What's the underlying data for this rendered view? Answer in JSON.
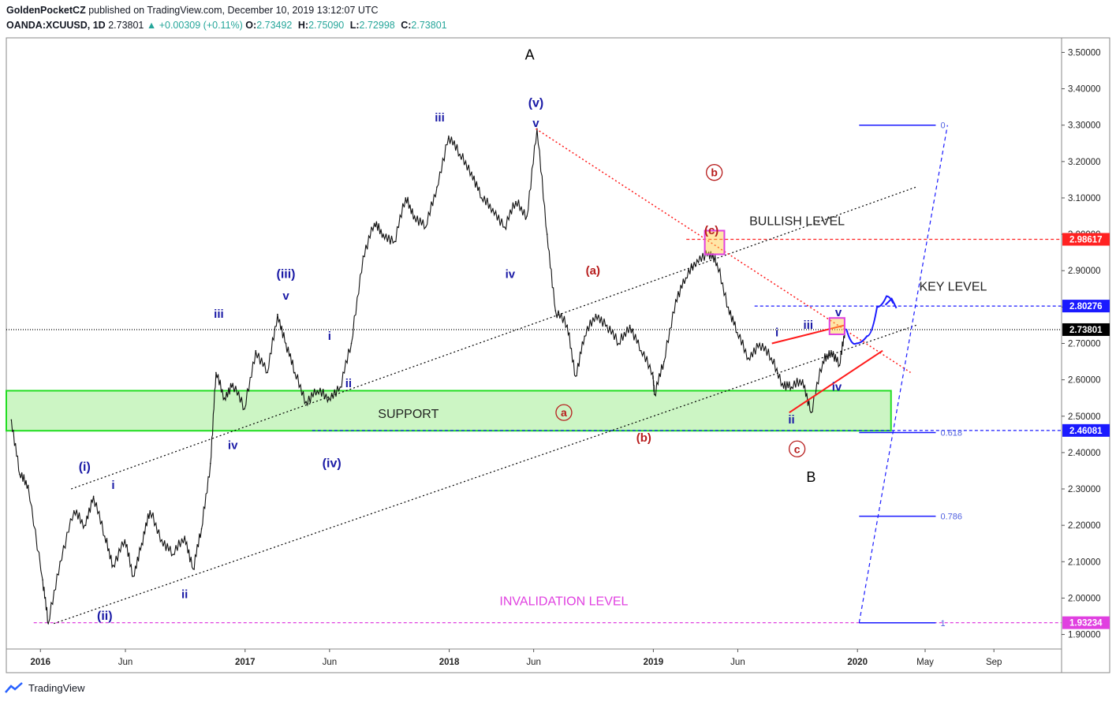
{
  "header": {
    "author": "GoldenPocketCZ",
    "published": "published on TradingView.com, December 10, 2019 13:12:07 UTC",
    "symbol": "OANDA:XCUUSD, 1D",
    "last": "2.73801",
    "change": "▲ +0.00309 (+0.11%)",
    "o_label": "O:",
    "o": "2.73492",
    "h_label": "H:",
    "h": "2.75090",
    "l_label": "L:",
    "l": "2.72998",
    "c_label": "C:",
    "c": "2.73801"
  },
  "footer": {
    "brand": "TradingView"
  },
  "colors": {
    "wave_major": "#1a1aa6",
    "wave_minor": "#b71c1c",
    "support_fill": "#ccf5c4",
    "support_edge": "#22dd22",
    "red_line": "#ff1a1a",
    "blue_line": "#1a1aff",
    "magenta": "#e040e0"
  },
  "chart_data": {
    "type": "line",
    "series": [
      {
        "x": [
          "2015-11-10",
          "2015-11-25",
          "2015-12-10",
          "2016-01-05",
          "2016-01-15",
          "2016-02-05",
          "2016-03-01",
          "2016-03-20",
          "2016-04-05",
          "2016-04-25",
          "2016-05-10",
          "2016-05-31",
          "2016-06-15",
          "2016-06-30",
          "2016-07-15",
          "2016-08-05",
          "2016-08-25",
          "2016-09-15",
          "2016-09-30",
          "2016-10-15",
          "2016-10-31",
          "2016-11-10",
          "2016-11-25",
          "2016-12-10",
          "2016-12-31",
          "2017-01-20",
          "2017-02-10",
          "2017-02-28",
          "2017-03-15",
          "2017-03-31",
          "2017-04-20",
          "2017-05-10",
          "2017-05-31",
          "2017-06-20",
          "2017-07-10",
          "2017-07-31",
          "2017-08-20",
          "2017-09-05",
          "2017-09-25",
          "2017-10-15",
          "2017-10-31",
          "2017-11-20",
          "2017-12-10",
          "2017-12-31",
          "2018-01-20",
          "2018-02-10",
          "2018-02-28",
          "2018-03-20",
          "2018-04-10",
          "2018-04-30",
          "2018-05-20",
          "2018-06-07",
          "2018-06-25",
          "2018-07-10",
          "2018-07-31",
          "2018-08-15",
          "2018-08-31",
          "2018-09-20",
          "2018-10-10",
          "2018-10-31",
          "2018-11-20",
          "2018-12-10",
          "2018-12-31",
          "2019-01-03",
          "2019-01-20",
          "2019-02-10",
          "2019-02-28",
          "2019-03-20",
          "2019-04-10",
          "2019-04-25",
          "2019-05-15",
          "2019-05-31",
          "2019-06-20",
          "2019-07-10",
          "2019-07-31",
          "2019-08-20",
          "2019-09-05",
          "2019-09-25",
          "2019-10-10",
          "2019-10-31",
          "2019-11-15",
          "2019-11-30",
          "2019-12-10"
        ],
        "y": [
          2.49,
          2.34,
          2.31,
          2.05,
          1.93,
          2.1,
          2.24,
          2.2,
          2.28,
          2.17,
          2.09,
          2.16,
          2.06,
          2.15,
          2.24,
          2.16,
          2.12,
          2.17,
          2.08,
          2.19,
          2.37,
          2.62,
          2.55,
          2.59,
          2.52,
          2.68,
          2.62,
          2.78,
          2.7,
          2.62,
          2.54,
          2.57,
          2.55,
          2.58,
          2.7,
          2.94,
          3.03,
          3.0,
          2.98,
          3.1,
          3.05,
          3.02,
          3.13,
          3.27,
          3.22,
          3.17,
          3.1,
          3.07,
          3.02,
          3.09,
          3.05,
          3.29,
          3.0,
          2.79,
          2.75,
          2.61,
          2.72,
          2.78,
          2.75,
          2.7,
          2.75,
          2.68,
          2.62,
          2.56,
          2.65,
          2.82,
          2.88,
          2.93,
          2.95,
          2.92,
          2.8,
          2.73,
          2.66,
          2.7,
          2.66,
          2.59,
          2.58,
          2.6,
          2.51,
          2.65,
          2.68,
          2.64,
          2.74
        ]
      }
    ],
    "ylim": [
      1.86,
      3.54
    ],
    "xlim": [
      "2015-11-01",
      "2020-12-31"
    ],
    "y_ticks": [
      "3.50000",
      "3.40000",
      "3.30000",
      "3.20000",
      "3.10000",
      "3.00000",
      "2.90000",
      "2.80000",
      "2.70000",
      "2.60000",
      "2.50000",
      "2.40000",
      "2.30000",
      "2.20000",
      "2.10000",
      "2.00000",
      "1.90000"
    ],
    "x_ticks": [
      {
        "label": "2016",
        "x": "2016-01-01",
        "bold": true
      },
      {
        "label": "Jun",
        "x": "2016-06-01",
        "bold": false
      },
      {
        "label": "2017",
        "x": "2017-01-01",
        "bold": true
      },
      {
        "label": "Jun",
        "x": "2017-06-01",
        "bold": false
      },
      {
        "label": "2018",
        "x": "2018-01-01",
        "bold": true
      },
      {
        "label": "Jun",
        "x": "2018-06-01",
        "bold": false
      },
      {
        "label": "2019",
        "x": "2019-01-01",
        "bold": true
      },
      {
        "label": "Jun",
        "x": "2019-06-01",
        "bold": false
      },
      {
        "label": "2020",
        "x": "2020-01-01",
        "bold": true
      },
      {
        "label": "May",
        "x": "2020-05-01",
        "bold": false
      },
      {
        "label": "Sep",
        "x": "2020-09-01",
        "bold": false
      }
    ],
    "price_tags": [
      {
        "label": "2.98617",
        "y": 2.98617,
        "color": "#ff2222"
      },
      {
        "label": "2.80276",
        "y": 2.80276,
        "color": "#1a1aff"
      },
      {
        "label": "2.73801",
        "y": 2.73801,
        "color": "#000000"
      },
      {
        "label": "2.46081",
        "y": 2.46081,
        "color": "#1a1aff"
      },
      {
        "label": "1.93234",
        "y": 1.93234,
        "color": "#e040e0"
      }
    ],
    "horizontal_lines": [
      {
        "y": 2.98617,
        "x_from": "2019-03-01",
        "x_to": "2020-12-31",
        "color": "#ff2222",
        "dash": "4,3"
      },
      {
        "y": 2.80276,
        "x_from": "2019-07-01",
        "x_to": "2020-12-31",
        "color": "#1a1aff",
        "dash": "4,3"
      },
      {
        "y": 2.73801,
        "x_from": "2015-11-01",
        "x_to": "2020-12-31",
        "color": "#000000",
        "dash": "1,2"
      },
      {
        "y": 2.46081,
        "x_from": "2017-05-01",
        "x_to": "2020-12-31",
        "color": "#1a1aff",
        "dash": "4,3"
      },
      {
        "y": 1.93234,
        "x_from": "2015-12-20",
        "x_to": "2020-12-31",
        "color": "#e040e0",
        "dash": "4,3"
      }
    ],
    "zones": [
      {
        "name": "support",
        "x_from": "2015-11-01",
        "x_to": "2020-03-01",
        "y_from": 2.46,
        "y_to": 2.57,
        "fill": "#ccf5c4",
        "stroke": "#22dd22"
      }
    ],
    "boxes": [
      {
        "x_from": "2019-04-03",
        "x_to": "2019-05-08",
        "y_from": 2.945,
        "y_to": 3.01,
        "fill": "rgba(255,200,60,0.45)",
        "stroke": "#e040e0"
      },
      {
        "x_from": "2019-11-12",
        "x_to": "2019-12-09",
        "y_from": 2.725,
        "y_to": 2.77,
        "fill": "rgba(255,200,60,0.45)",
        "stroke": "#e040e0"
      }
    ],
    "trendlines": [
      {
        "x1": "2016-01-25",
        "y1": 1.93,
        "x2": "2020-04-15",
        "y2": 2.75,
        "color": "#000000",
        "dash": "2,3",
        "width": 1.2
      },
      {
        "x1": "2016-02-25",
        "y1": 2.3,
        "x2": "2020-04-15",
        "y2": 3.13,
        "color": "#000000",
        "dash": "2,3",
        "width": 1.2
      },
      {
        "x1": "2018-06-05",
        "y1": 3.29,
        "x2": "2020-04-05",
        "y2": 2.62,
        "color": "#ff1a1a",
        "dash": "2,3",
        "width": 1.5
      },
      {
        "x1": "2019-09-01",
        "y1": 2.51,
        "x2": "2020-02-15",
        "y2": 2.68,
        "color": "#ff1a1a",
        "dash": "",
        "width": 2
      },
      {
        "x1": "2019-08-01",
        "y1": 2.7,
        "x2": "2019-12-09",
        "y2": 2.75,
        "color": "#ff1a1a",
        "dash": "",
        "width": 2
      },
      {
        "x1": "2020-01-04",
        "y1": 1.932,
        "x2": "2020-06-10",
        "y2": 3.3,
        "color": "#1a1aff",
        "dash": "5,4",
        "width": 1.2
      }
    ],
    "fib_levels": [
      {
        "label": "0",
        "y": 3.3
      },
      {
        "label": "0.618",
        "y": 2.455
      },
      {
        "label": "0.786",
        "y": 2.225
      },
      {
        "label": "1",
        "y": 1.932
      }
    ],
    "fib_x_from": "2020-01-04",
    "fib_x_to": "2020-05-20",
    "projection": {
      "points": [
        [
          "2019-12-12",
          2.74
        ],
        [
          "2019-12-30",
          2.7
        ],
        [
          "2020-01-18",
          2.72
        ],
        [
          "2020-02-05",
          2.8
        ],
        [
          "2020-02-22",
          2.83
        ],
        [
          "2020-03-05",
          2.81
        ]
      ]
    },
    "annotations": [
      {
        "text": "A",
        "x": "2018-05-25",
        "y": 3.48,
        "color": "#000000",
        "size": 18,
        "weight": "normal"
      },
      {
        "text": "B",
        "x": "2019-10-10",
        "y": 2.32,
        "color": "#000000",
        "size": 18,
        "weight": "normal"
      },
      {
        "text": "(v)",
        "x": "2018-06-05",
        "y": 3.35,
        "color": "#1a1aa6",
        "size": 16,
        "weight": "bold"
      },
      {
        "text": "v",
        "x": "2018-06-05",
        "y": 3.295,
        "color": "#1a1aa6",
        "size": 15,
        "weight": "bold"
      },
      {
        "text": "iii",
        "x": "2017-12-15",
        "y": 3.31,
        "color": "#1a1aa6",
        "size": 15,
        "weight": "bold"
      },
      {
        "text": "iv",
        "x": "2018-04-20",
        "y": 2.88,
        "color": "#1a1aa6",
        "size": 15,
        "weight": "bold"
      },
      {
        "text": "(iii)",
        "x": "2017-03-15",
        "y": 2.88,
        "color": "#1a1aa6",
        "size": 16,
        "weight": "bold"
      },
      {
        "text": "v",
        "x": "2017-03-15",
        "y": 2.82,
        "color": "#1a1aa6",
        "size": 15,
        "weight": "bold"
      },
      {
        "text": "iii",
        "x": "2016-11-15",
        "y": 2.77,
        "color": "#1a1aa6",
        "size": 15,
        "weight": "bold"
      },
      {
        "text": "i",
        "x": "2017-06-01",
        "y": 2.71,
        "color": "#1a1aa6",
        "size": 15,
        "weight": "bold"
      },
      {
        "text": "ii",
        "x": "2017-07-05",
        "y": 2.58,
        "color": "#1a1aa6",
        "size": 15,
        "weight": "bold"
      },
      {
        "text": "iv",
        "x": "2016-12-10",
        "y": 2.41,
        "color": "#1a1aa6",
        "size": 15,
        "weight": "bold"
      },
      {
        "text": "(iv)",
        "x": "2017-06-05",
        "y": 2.36,
        "color": "#1a1aa6",
        "size": 16,
        "weight": "bold"
      },
      {
        "text": "(i)",
        "x": "2016-03-20",
        "y": 2.35,
        "color": "#1a1aa6",
        "size": 16,
        "weight": "bold"
      },
      {
        "text": "i",
        "x": "2016-05-10",
        "y": 2.3,
        "color": "#1a1aa6",
        "size": 15,
        "weight": "bold"
      },
      {
        "text": "ii",
        "x": "2016-09-15",
        "y": 2.0,
        "color": "#1a1aa6",
        "size": 15,
        "weight": "bold"
      },
      {
        "text": "(ii)",
        "x": "2016-04-25",
        "y": 1.94,
        "color": "#1a1aa6",
        "size": 16,
        "weight": "bold"
      },
      {
        "text": "(a)",
        "x": "2018-09-15",
        "y": 2.89,
        "color": "#b71c1c",
        "size": 15,
        "weight": "bold"
      },
      {
        "text": "(b)",
        "x": "2018-12-15",
        "y": 2.43,
        "color": "#b71c1c",
        "size": 15,
        "weight": "bold"
      },
      {
        "text": "(c)",
        "x": "2019-04-15",
        "y": 3.0,
        "color": "#b71c1c",
        "size": 15,
        "weight": "bold"
      },
      {
        "text": "i",
        "x": "2019-08-10",
        "y": 2.72,
        "color": "#1a1aa6",
        "size": 15,
        "weight": "bold"
      },
      {
        "text": "iii",
        "x": "2019-10-05",
        "y": 2.74,
        "color": "#1a1aa6",
        "size": 15,
        "weight": "bold"
      },
      {
        "text": "v",
        "x": "2019-11-28",
        "y": 2.775,
        "color": "#1a1aa6",
        "size": 15,
        "weight": "bold"
      },
      {
        "text": "iv",
        "x": "2019-11-25",
        "y": 2.57,
        "color": "#1a1aa6",
        "size": 15,
        "weight": "bold"
      },
      {
        "text": "ii",
        "x": "2019-09-05",
        "y": 2.48,
        "color": "#1a1aa6",
        "size": 15,
        "weight": "bold"
      },
      {
        "text": "BULLISH LEVEL",
        "x": "2019-09-15",
        "y": 3.025,
        "color": "#222222",
        "size": 16,
        "weight": "normal"
      },
      {
        "text": "KEY LEVEL",
        "x": "2020-06-20",
        "y": 2.845,
        "color": "#222222",
        "size": 16,
        "weight": "normal"
      },
      {
        "text": "SUPPORT",
        "x": "2017-10-20",
        "y": 2.495,
        "color": "#222222",
        "size": 16,
        "weight": "normal"
      },
      {
        "text": "INVALIDATION LEVEL",
        "x": "2018-07-25",
        "y": 1.98,
        "color": "#e040e0",
        "size": 16,
        "weight": "normal"
      }
    ],
    "circled_labels": [
      {
        "text": "b",
        "x": "2019-04-20",
        "y": 3.17,
        "color": "#b71c1c"
      },
      {
        "text": "a",
        "x": "2018-07-25",
        "y": 2.51,
        "color": "#b71c1c"
      },
      {
        "text": "c",
        "x": "2019-09-15",
        "y": 2.41,
        "color": "#b71c1c"
      }
    ]
  }
}
